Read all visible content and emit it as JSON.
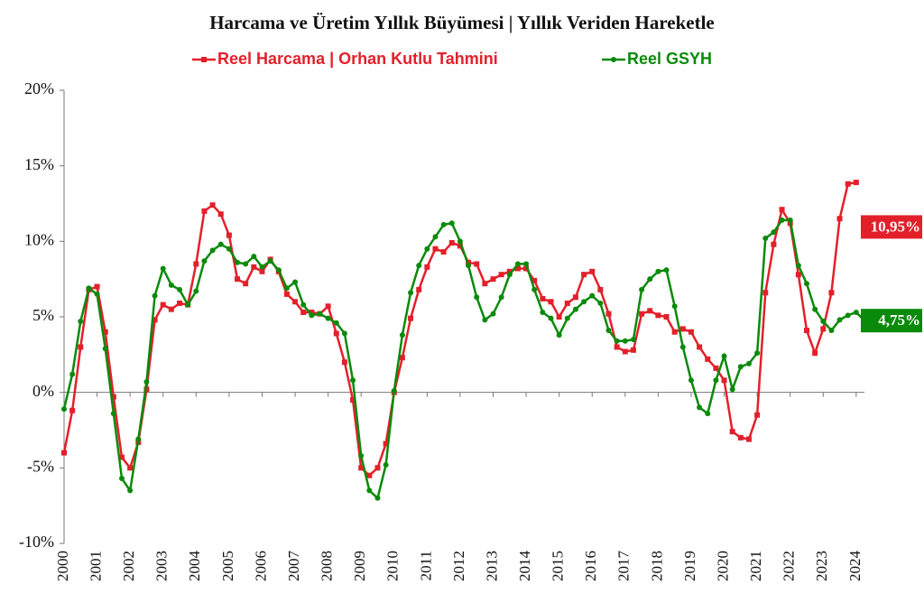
{
  "chart_data": {
    "type": "line",
    "title": "Harcama ve Üretim Yıllık Büyümesi | Yıllık Veriden Hareketle",
    "x": [
      2000,
      2000.25,
      2000.5,
      2000.75,
      2001,
      2001.25,
      2001.5,
      2001.75,
      2002,
      2002.25,
      2002.5,
      2002.75,
      2003,
      2003.25,
      2003.5,
      2003.75,
      2004,
      2004.25,
      2004.5,
      2004.75,
      2005,
      2005.25,
      2005.5,
      2005.75,
      2006,
      2006.25,
      2006.5,
      2006.75,
      2007,
      2007.25,
      2007.5,
      2007.75,
      2008,
      2008.25,
      2008.5,
      2008.75,
      2009,
      2009.25,
      2009.5,
      2009.75,
      2010,
      2010.25,
      2010.5,
      2010.75,
      2011,
      2011.25,
      2011.5,
      2011.75,
      2012,
      2012.25,
      2012.5,
      2012.75,
      2013,
      2013.25,
      2013.5,
      2013.75,
      2014,
      2014.25,
      2014.5,
      2014.75,
      2015,
      2015.25,
      2015.5,
      2015.75,
      2016,
      2016.25,
      2016.5,
      2016.75,
      2017,
      2017.25,
      2017.5,
      2017.75,
      2018,
      2018.25,
      2018.5,
      2018.75,
      2019,
      2019.25,
      2019.5,
      2019.75,
      2020,
      2020.25,
      2020.5,
      2020.75,
      2021,
      2021.25,
      2021.5,
      2021.75,
      2022,
      2022.25,
      2022.5,
      2022.75,
      2023,
      2023.25,
      2023.5,
      2023.75,
      2024,
      2024.25
    ],
    "series": [
      {
        "name": "Reel Harcama | Orhan Kutlu Tahmini",
        "color": "#e3202a",
        "marker": "square",
        "values": [
          -4.0,
          -1.2,
          3.0,
          6.8,
          7.0,
          4.0,
          -0.3,
          -4.3,
          -5.0,
          -3.3,
          0.2,
          4.8,
          5.8,
          5.5,
          5.9,
          5.8,
          8.5,
          12.0,
          12.4,
          11.8,
          10.4,
          7.5,
          7.2,
          8.3,
          8.0,
          8.8,
          8.0,
          6.5,
          6.0,
          5.3,
          5.3,
          5.2,
          5.7,
          3.9,
          2.0,
          -0.5,
          -5.0,
          -5.5,
          -5.0,
          -3.4,
          0.0,
          2.3,
          4.9,
          6.8,
          8.3,
          9.5,
          9.3,
          9.9,
          9.7,
          8.6,
          8.5,
          7.2,
          7.5,
          7.8,
          8.0,
          8.2,
          8.2,
          7.4,
          6.2,
          6.0,
          5.0,
          5.9,
          6.3,
          7.8,
          8.0,
          6.8,
          5.2,
          3.0,
          2.7,
          2.8,
          5.2,
          5.4,
          5.1,
          5.0,
          4.0,
          4.2,
          4.0,
          3.0,
          2.2,
          1.6,
          0.8,
          -2.6,
          -3.0,
          -3.1,
          -1.5,
          6.6,
          9.8,
          12.1,
          11.2,
          7.8,
          4.1,
          2.6,
          4.2,
          6.6,
          11.5,
          13.8,
          13.9,
          null
        ]
      },
      {
        "name": "Reel GSYH",
        "color": "#0a8a0a",
        "marker": "circle",
        "values": [
          -1.1,
          1.2,
          4.7,
          6.9,
          6.5,
          2.9,
          -1.4,
          -5.7,
          -6.5,
          -3.1,
          0.7,
          6.4,
          8.2,
          7.1,
          6.8,
          5.8,
          6.7,
          8.7,
          9.4,
          9.8,
          9.5,
          8.6,
          8.5,
          9.0,
          8.3,
          8.7,
          8.1,
          6.9,
          7.3,
          5.8,
          5.1,
          5.2,
          4.9,
          4.6,
          3.9,
          0.8,
          -4.2,
          -6.5,
          -7.0,
          -4.8,
          0.1,
          3.8,
          6.6,
          8.4,
          9.5,
          10.3,
          11.1,
          11.2,
          10.0,
          8.4,
          6.3,
          4.8,
          5.2,
          6.3,
          7.8,
          8.5,
          8.5,
          6.8,
          5.3,
          4.9,
          3.8,
          4.9,
          5.5,
          6.0,
          6.4,
          5.9,
          4.1,
          3.4,
          3.4,
          3.5,
          6.8,
          7.5,
          8.0,
          8.1,
          5.7,
          3.0,
          0.8,
          -1.0,
          -1.4,
          0.8,
          2.4,
          0.2,
          1.7,
          1.9,
          2.6,
          10.2,
          10.6,
          11.4,
          11.4,
          8.4,
          7.2,
          5.5,
          4.7,
          4.1,
          4.8,
          5.1,
          5.3,
          4.75
        ]
      }
    ],
    "annotations": [
      {
        "text": "10,95%",
        "value": 10.95,
        "color": "#e3202a"
      },
      {
        "text": "4,75%",
        "value": 4.75,
        "color": "#0a8a0a"
      }
    ],
    "xlim": [
      2000,
      2024.25
    ],
    "xticks": [
      2000,
      2001,
      2002,
      2003,
      2004,
      2005,
      2006,
      2007,
      2008,
      2009,
      2010,
      2011,
      2012,
      2013,
      2014,
      2015,
      2016,
      2017,
      2018,
      2019,
      2020,
      2021,
      2022,
      2023,
      2024
    ],
    "ylim": [
      -10,
      20
    ],
    "yticks": [
      {
        "value": -10,
        "label": "-10%"
      },
      {
        "value": -5,
        "label": "-5%"
      },
      {
        "value": 0,
        "label": "0%"
      },
      {
        "value": 5,
        "label": "5%"
      },
      {
        "value": 10,
        "label": "10%"
      },
      {
        "value": 15,
        "label": "15%"
      },
      {
        "value": 20,
        "label": "20%"
      }
    ],
    "grid": false,
    "legend": "top"
  }
}
